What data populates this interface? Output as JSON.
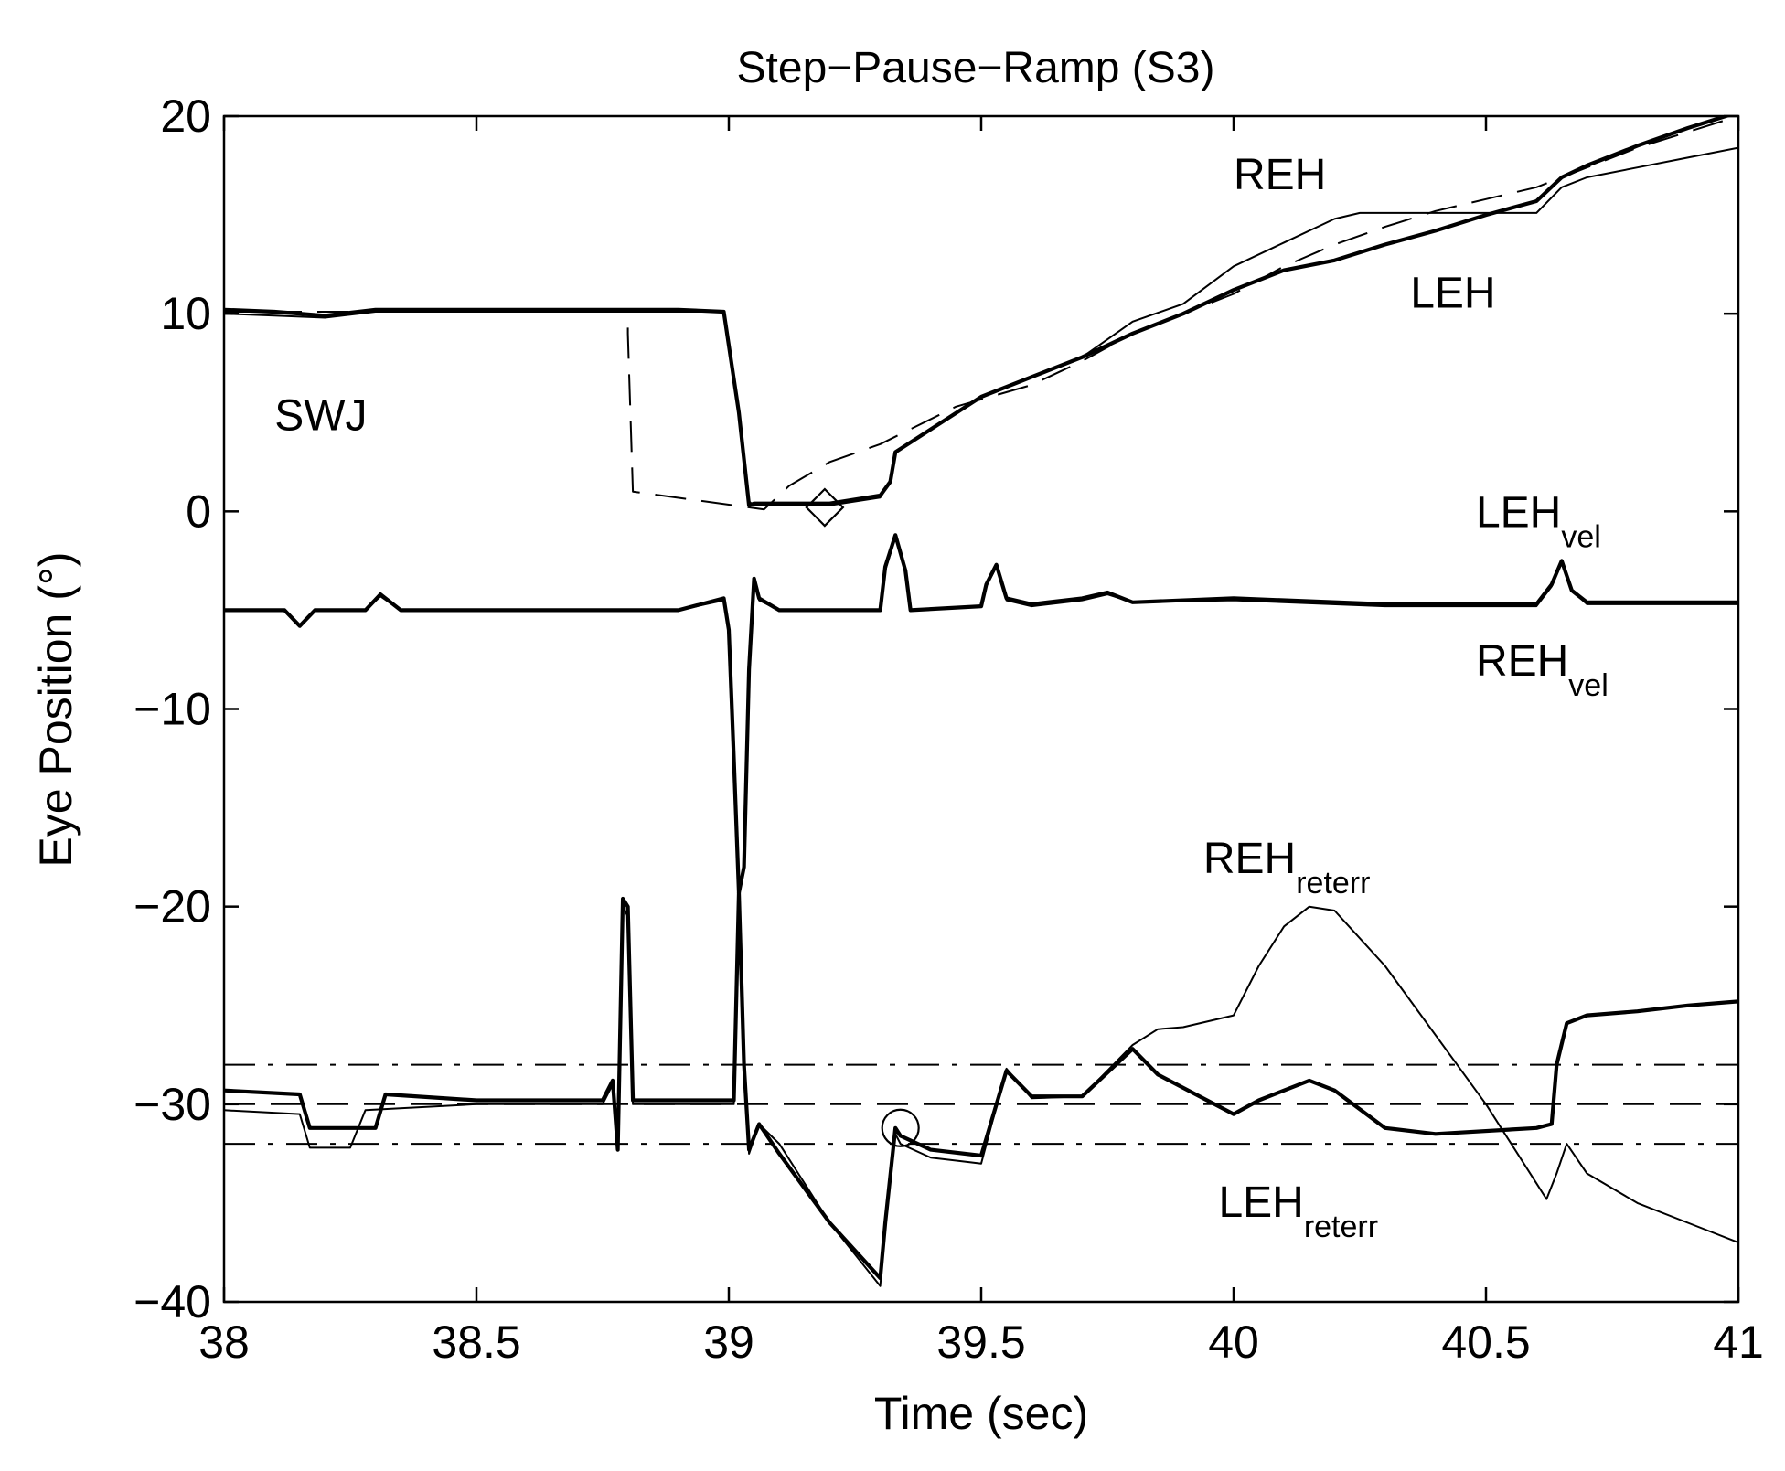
{
  "chart_data": {
    "type": "line",
    "title": "Step−Pause−Ramp (S3)",
    "xlabel": "Time (sec)",
    "ylabel": "Eye Position (°)",
    "xlim": [
      38,
      41
    ],
    "ylim": [
      -40,
      20
    ],
    "grid": false,
    "legend": "none",
    "xticks": [
      38,
      38.5,
      39,
      39.5,
      40,
      40.5,
      41
    ],
    "xtick_labels": [
      "38",
      "38.5",
      "39",
      "39.5",
      "40",
      "40.5",
      "41"
    ],
    "yticks": [
      20,
      10,
      0,
      -10,
      -20,
      -30,
      -40
    ],
    "ytick_labels": [
      "20",
      "10",
      "0",
      "−10",
      "−20",
      "−30",
      "−40"
    ],
    "annotations": [
      {
        "text": "SWJ",
        "sub": "",
        "x": 38.1,
        "y": 4.1
      },
      {
        "text": "REH",
        "sub": "",
        "x": 40.0,
        "y": 16.3
      },
      {
        "text": "LEH",
        "sub": "",
        "x": 40.35,
        "y": 10.3
      },
      {
        "text": "LEH",
        "sub": "vel",
        "x": 40.48,
        "y": -0.8
      },
      {
        "text": "REH",
        "sub": "vel",
        "x": 40.48,
        "y": -8.3
      },
      {
        "text": "REH",
        "sub": "reterr",
        "x": 39.94,
        "y": -18.3
      },
      {
        "text": "LEH",
        "sub": "reterr",
        "x": 39.97,
        "y": -35.7
      }
    ],
    "markers": [
      {
        "shape": "diamond",
        "x": 39.19,
        "y": 0.2
      },
      {
        "shape": "circle",
        "x": 39.34,
        "y": -31.2
      }
    ],
    "series": [
      {
        "role": "target",
        "style": "dashed",
        "width": "thin",
        "x": [
          38.0,
          38.8,
          38.8,
          38.81,
          39.07,
          39.12,
          39.2,
          39.3,
          39.45,
          39.6,
          39.7,
          39.8,
          39.9,
          40.0,
          40.1,
          40.2,
          40.3,
          40.4,
          40.5,
          40.6,
          40.7,
          40.8,
          40.9,
          41.0
        ],
        "y": [
          10.1,
          10.1,
          9.0,
          1.0,
          0.1,
          1.3,
          2.5,
          3.4,
          5.3,
          6.4,
          7.6,
          9.0,
          10.0,
          11.0,
          12.4,
          13.5,
          14.4,
          15.2,
          15.8,
          16.4,
          17.4,
          18.4,
          19.2,
          20.0
        ]
      },
      {
        "role": "position",
        "style": "solid",
        "width": "thin",
        "x": [
          38.0,
          38.1,
          38.2,
          38.3,
          38.5,
          38.9,
          38.99,
          39.02,
          39.04,
          39.05,
          39.2,
          39.3,
          39.32,
          39.33,
          39.5,
          39.6,
          39.7,
          39.8,
          39.9,
          40.0,
          40.1,
          40.2,
          40.25,
          40.5,
          40.6,
          40.65,
          40.7,
          40.8,
          40.9,
          41.0
        ],
        "y": [
          10.0,
          9.9,
          9.8,
          10.1,
          10.1,
          10.1,
          10.1,
          5.0,
          0.5,
          0.3,
          0.3,
          0.7,
          1.5,
          3.0,
          5.8,
          6.8,
          7.8,
          9.6,
          10.5,
          12.4,
          13.6,
          14.8,
          15.1,
          15.1,
          15.1,
          16.4,
          16.9,
          17.4,
          17.9,
          18.4
        ]
      },
      {
        "role": "position",
        "style": "solid",
        "width": "thick",
        "x": [
          38.0,
          38.1,
          38.2,
          38.3,
          38.5,
          38.9,
          38.99,
          39.02,
          39.04,
          39.05,
          39.2,
          39.3,
          39.32,
          39.33,
          39.5,
          39.6,
          39.7,
          39.8,
          39.9,
          40.0,
          40.1,
          40.2,
          40.3,
          40.4,
          40.5,
          40.6,
          40.65,
          40.7,
          40.8,
          40.9,
          41.0
        ],
        "y": [
          10.2,
          10.1,
          9.9,
          10.2,
          10.2,
          10.2,
          10.1,
          5.0,
          0.3,
          0.4,
          0.4,
          0.8,
          1.5,
          3.0,
          5.8,
          6.8,
          7.8,
          9.0,
          10.0,
          11.2,
          12.2,
          12.7,
          13.5,
          14.2,
          15.0,
          15.7,
          16.9,
          17.5,
          18.5,
          19.4,
          20.2
        ]
      },
      {
        "role": "velocity",
        "style": "solid",
        "width": "thin",
        "x": [
          38.0,
          38.12,
          38.15,
          38.18,
          38.28,
          38.31,
          38.35,
          38.9,
          38.99,
          39.0,
          39.01,
          39.02,
          39.03,
          39.04,
          39.05,
          39.06,
          39.1,
          39.3,
          39.31,
          39.33,
          39.35,
          39.36,
          39.5,
          39.51,
          39.53,
          39.55,
          39.6,
          39.7,
          39.75,
          39.8,
          40.0,
          40.3,
          40.5,
          40.6,
          40.63,
          40.65,
          40.67,
          40.7,
          41.0
        ],
        "y": [
          -5.0,
          -5.0,
          -5.8,
          -5.0,
          -5.0,
          -4.3,
          -5.0,
          -5.0,
          -4.5,
          -6.0,
          -12.0,
          -19.0,
          -18.0,
          -8.0,
          -3.6,
          -4.5,
          -5.0,
          -5.0,
          -3.0,
          -1.3,
          -3.0,
          -5.0,
          -4.8,
          -3.8,
          -2.8,
          -4.5,
          -4.8,
          -4.5,
          -4.2,
          -4.6,
          -4.5,
          -4.8,
          -4.8,
          -4.8,
          -3.8,
          -2.6,
          -4.0,
          -4.7,
          -4.7
        ]
      },
      {
        "role": "velocity",
        "style": "solid",
        "width": "thick",
        "x": [
          38.0,
          38.12,
          38.15,
          38.18,
          38.28,
          38.31,
          38.35,
          38.9,
          38.99,
          39.0,
          39.01,
          39.02,
          39.03,
          39.04,
          39.05,
          39.06,
          39.1,
          39.3,
          39.31,
          39.33,
          39.35,
          39.36,
          39.5,
          39.51,
          39.53,
          39.55,
          39.6,
          39.7,
          39.75,
          39.8,
          40.0,
          40.3,
          40.5,
          40.6,
          40.63,
          40.65,
          40.67,
          40.7,
          41.0
        ],
        "y": [
          -5.0,
          -5.0,
          -5.8,
          -5.0,
          -5.0,
          -4.2,
          -5.0,
          -5.0,
          -4.4,
          -6.0,
          -12.5,
          -19.3,
          -18.0,
          -8.0,
          -3.4,
          -4.4,
          -5.0,
          -5.0,
          -2.8,
          -1.2,
          -3.0,
          -5.0,
          -4.8,
          -3.7,
          -2.7,
          -4.4,
          -4.7,
          -4.4,
          -4.1,
          -4.6,
          -4.4,
          -4.7,
          -4.7,
          -4.7,
          -3.7,
          -2.5,
          -4.0,
          -4.6,
          -4.6
        ]
      },
      {
        "role": "retinal-error",
        "style": "solid",
        "width": "thin",
        "x": [
          38.0,
          38.15,
          38.17,
          38.25,
          38.28,
          38.5,
          38.75,
          38.77,
          38.78,
          38.79,
          38.8,
          38.81,
          38.99,
          39.01,
          39.02,
          39.03,
          39.04,
          39.06,
          39.1,
          39.2,
          39.3,
          39.31,
          39.33,
          39.34,
          39.4,
          39.5,
          39.55,
          39.6,
          39.7,
          39.8,
          39.85,
          39.9,
          40.0,
          40.05,
          40.1,
          40.15,
          40.2,
          40.3,
          40.5,
          40.6,
          40.62,
          40.64,
          40.66,
          40.7,
          40.8,
          40.9,
          41.0
        ],
        "y": [
          -30.3,
          -30.5,
          -32.2,
          -32.2,
          -30.3,
          -30.0,
          -30.0,
          -29.0,
          -32.0,
          -20.0,
          -20.5,
          -30.0,
          -30.0,
          -30.0,
          -19.0,
          -28.0,
          -32.5,
          -31.0,
          -32.0,
          -36.0,
          -39.2,
          -36.0,
          -31.5,
          -32.0,
          -32.7,
          -33.0,
          -28.2,
          -29.7,
          -29.6,
          -27.0,
          -26.2,
          -26.1,
          -25.5,
          -23.0,
          -21.0,
          -20.0,
          -20.2,
          -23.0,
          -30.0,
          -34.0,
          -34.8,
          -33.5,
          -32.0,
          -33.5,
          -35.0,
          -36.0,
          -37.0
        ]
      },
      {
        "role": "retinal-error",
        "style": "solid",
        "width": "thick",
        "x": [
          38.0,
          38.15,
          38.17,
          38.3,
          38.32,
          38.5,
          38.75,
          38.77,
          38.78,
          38.79,
          38.8,
          38.81,
          38.99,
          39.01,
          39.02,
          39.03,
          39.04,
          39.06,
          39.1,
          39.2,
          39.3,
          39.31,
          39.33,
          39.34,
          39.4,
          39.5,
          39.55,
          39.6,
          39.7,
          39.8,
          39.85,
          40.0,
          40.05,
          40.15,
          40.2,
          40.3,
          40.4,
          40.6,
          40.63,
          40.64,
          40.66,
          40.7,
          40.8,
          40.9,
          41.0
        ],
        "y": [
          -29.3,
          -29.5,
          -31.2,
          -31.2,
          -29.5,
          -29.8,
          -29.8,
          -28.8,
          -32.3,
          -19.6,
          -20.0,
          -29.8,
          -29.8,
          -29.8,
          -19.3,
          -28.0,
          -32.3,
          -31.0,
          -32.5,
          -36.0,
          -38.8,
          -36.0,
          -31.2,
          -31.6,
          -32.3,
          -32.6,
          -28.3,
          -29.6,
          -29.6,
          -27.2,
          -28.5,
          -30.5,
          -29.8,
          -28.8,
          -29.3,
          -31.2,
          -31.5,
          -31.2,
          -31.0,
          -28.0,
          -25.9,
          -25.5,
          -25.3,
          -25.0,
          -24.8
        ]
      },
      {
        "role": "threshold",
        "style": "dashed",
        "width": "thin",
        "x": [
          38.0,
          41.0
        ],
        "y": [
          -30.0,
          -30.0
        ]
      },
      {
        "role": "threshold",
        "style": "dash-dot",
        "width": "thin",
        "x": [
          38.0,
          41.0
        ],
        "y": [
          -28.0,
          -28.0
        ]
      },
      {
        "role": "threshold",
        "style": "dash-dot",
        "width": "thin",
        "x": [
          38.0,
          41.0
        ],
        "y": [
          -32.0,
          -32.0
        ]
      }
    ]
  }
}
